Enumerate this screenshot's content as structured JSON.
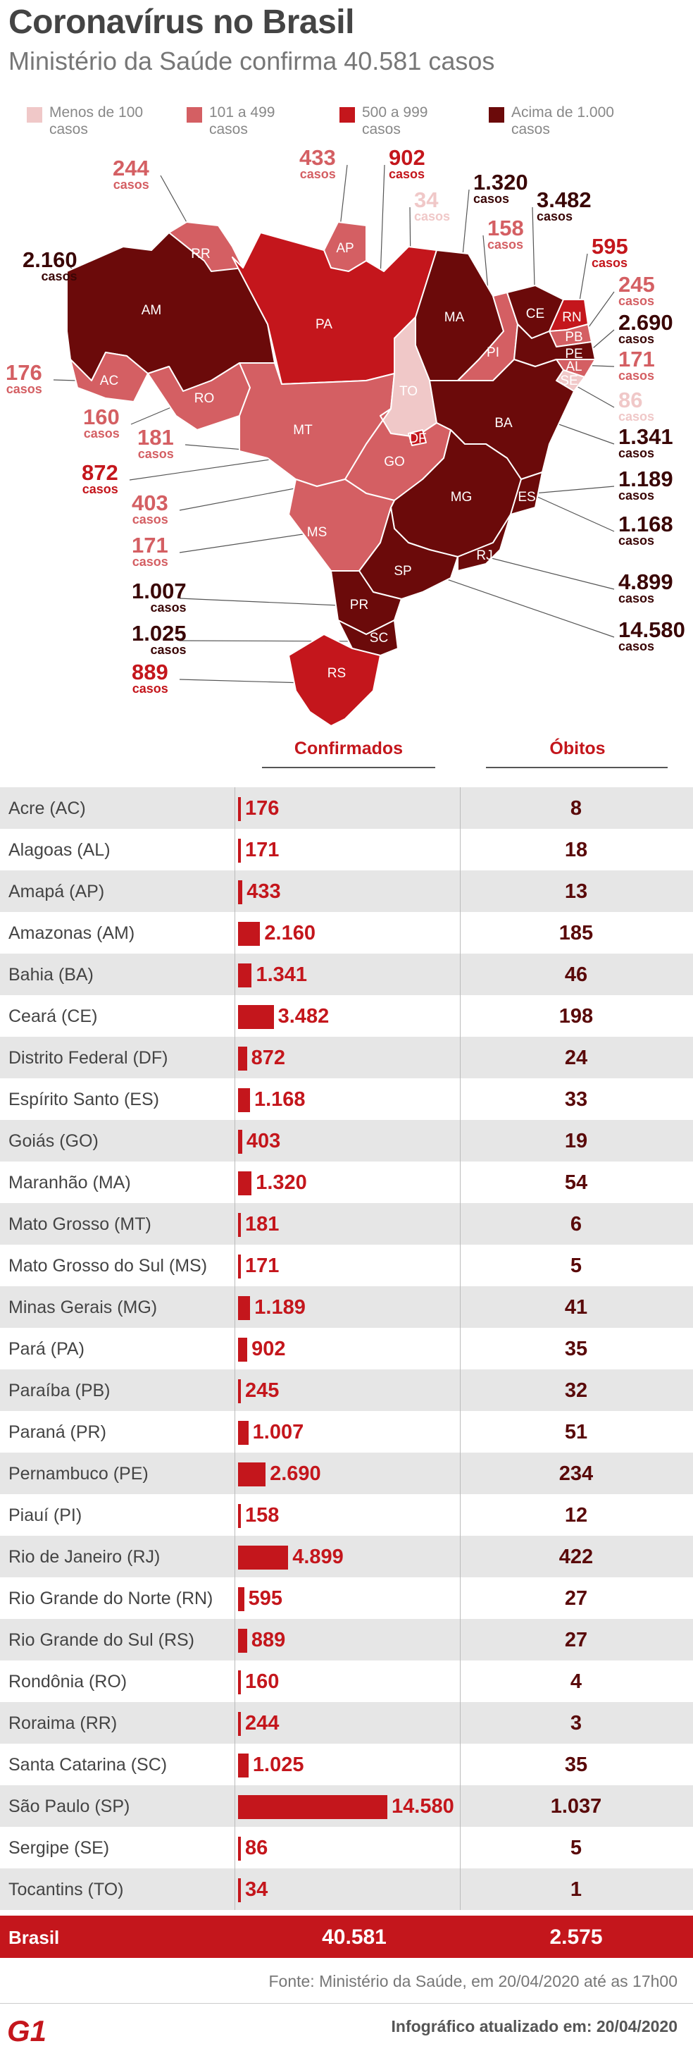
{
  "title": "Coronavírus no Brasil",
  "subtitle": "Ministério da Saúde confirma 40.581 casos",
  "legend": [
    {
      "label": "Menos de 100 casos",
      "color": "#f0c8c8"
    },
    {
      "label": "101 a 499 casos",
      "color": "#d45f63"
    },
    {
      "label": "500 a 999 casos",
      "color": "#c4161c"
    },
    {
      "label": "Acima de 1.000 casos",
      "color": "#6b0a0a"
    }
  ],
  "map_unit": "casos",
  "map_labels": [
    {
      "state": "RR",
      "value": "244",
      "color": "#d45f63"
    },
    {
      "state": "AP",
      "value": "433",
      "color": "#d45f63"
    },
    {
      "state": "PA",
      "value": "902",
      "color": "#c4161c"
    },
    {
      "state": "TO",
      "value": "34",
      "color": "#f0c8c8"
    },
    {
      "state": "MA",
      "value": "1.320",
      "color": "#6b0a0a"
    },
    {
      "state": "CE",
      "value": "3.482",
      "color": "#6b0a0a"
    },
    {
      "state": "PI",
      "value": "158",
      "color": "#d45f63"
    },
    {
      "state": "RN",
      "value": "595",
      "color": "#c4161c"
    },
    {
      "state": "PB",
      "value": "245",
      "color": "#d45f63"
    },
    {
      "state": "PE",
      "value": "2.690",
      "color": "#6b0a0a"
    },
    {
      "state": "AL",
      "value": "171",
      "color": "#d45f63"
    },
    {
      "state": "SE",
      "value": "86",
      "color": "#f0c8c8"
    },
    {
      "state": "BA",
      "value": "1.341",
      "color": "#6b0a0a"
    },
    {
      "state": "MG",
      "value": "1.189",
      "color": "#6b0a0a"
    },
    {
      "state": "ES",
      "value": "1.168",
      "color": "#6b0a0a"
    },
    {
      "state": "RJ",
      "value": "4.899",
      "color": "#6b0a0a"
    },
    {
      "state": "SP",
      "value": "14.580",
      "color": "#6b0a0a"
    },
    {
      "state": "AM",
      "value": "2.160",
      "color": "#6b0a0a"
    },
    {
      "state": "AC",
      "value": "176",
      "color": "#d45f63"
    },
    {
      "state": "RO",
      "value": "160",
      "color": "#d45f63"
    },
    {
      "state": "MT",
      "value": "181",
      "color": "#d45f63"
    },
    {
      "state": "DF",
      "value": "872",
      "color": "#c4161c"
    },
    {
      "state": "GO",
      "value": "403",
      "color": "#d45f63"
    },
    {
      "state": "MS",
      "value": "171",
      "color": "#d45f63"
    },
    {
      "state": "PR",
      "value": "1.007",
      "color": "#6b0a0a"
    },
    {
      "state": "SC",
      "value": "1.025",
      "color": "#6b0a0a"
    },
    {
      "state": "RS",
      "value": "889",
      "color": "#c4161c"
    }
  ],
  "table": {
    "col_confirmed": "Confirmados",
    "col_deaths": "Óbitos",
    "total_label": "Brasil",
    "total_confirmed": "40.581",
    "total_deaths": "2.575"
  },
  "chart_data": {
    "type": "bar",
    "categories": [
      "Acre (AC)",
      "Alagoas (AL)",
      "Amapá (AP)",
      "Amazonas (AM)",
      "Bahia (BA)",
      "Ceará (CE)",
      "Distrito Federal (DF)",
      "Espírito Santo (ES)",
      "Goiás (GO)",
      "Maranhão (MA)",
      "Mato Grosso (MT)",
      "Mato Grosso do Sul (MS)",
      "Minas Gerais (MG)",
      "Pará (PA)",
      "Paraíba (PB)",
      "Paraná (PR)",
      "Pernambuco (PE)",
      "Piauí (PI)",
      "Rio de Janeiro (RJ)",
      "Rio Grande do Norte (RN)",
      "Rio Grande do Sul (RS)",
      "Rondônia (RO)",
      "Roraima (RR)",
      "Santa Catarina (SC)",
      "São Paulo (SP)",
      "Sergipe (SE)",
      "Tocantins (TO)"
    ],
    "series": [
      {
        "name": "Confirmados",
        "values": [
          176,
          171,
          433,
          2160,
          1341,
          3482,
          872,
          1168,
          403,
          1320,
          181,
          171,
          1189,
          902,
          245,
          1007,
          2690,
          158,
          4899,
          595,
          889,
          160,
          244,
          1025,
          14580,
          86,
          34
        ],
        "labels": [
          "176",
          "171",
          "433",
          "2.160",
          "1.341",
          "3.482",
          "872",
          "1.168",
          "403",
          "1.320",
          "181",
          "171",
          "1.189",
          "902",
          "245",
          "1.007",
          "2.690",
          "158",
          "4.899",
          "595",
          "889",
          "160",
          "244",
          "1.025",
          "14.580",
          "86",
          "34"
        ]
      },
      {
        "name": "Óbitos",
        "values": [
          8,
          18,
          13,
          185,
          46,
          198,
          24,
          33,
          19,
          54,
          6,
          5,
          41,
          35,
          32,
          51,
          234,
          12,
          422,
          27,
          27,
          4,
          3,
          35,
          1037,
          5,
          1
        ],
        "labels": [
          "8",
          "18",
          "13",
          "185",
          "46",
          "198",
          "24",
          "33",
          "19",
          "54",
          "6",
          "5",
          "41",
          "35",
          "32",
          "51",
          "234",
          "12",
          "422",
          "27",
          "27",
          "4",
          "3",
          "35",
          "1.037",
          "5",
          "1"
        ]
      }
    ],
    "colors": {
      "bar": "#c4161c",
      "deaths_text": "#5a0a0a"
    }
  },
  "footer": {
    "source": "Fonte: Ministério da Saúde, em 20/04/2020 até as 17h00",
    "logo": "G1",
    "updated": "Infográfico atualizado em: 20/04/2020"
  }
}
